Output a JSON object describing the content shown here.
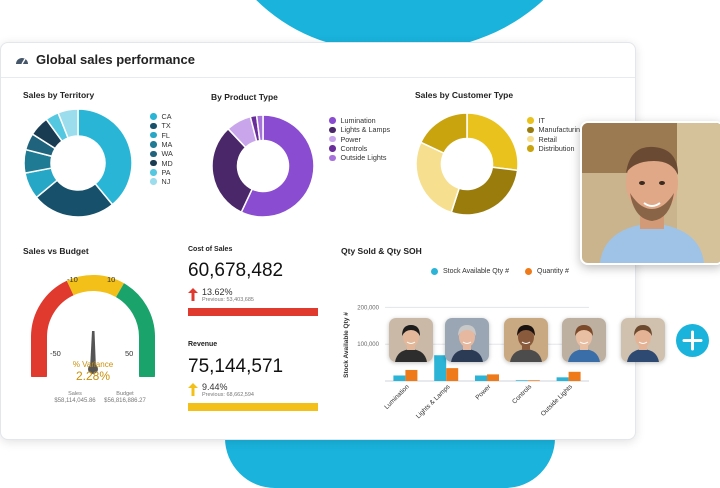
{
  "header": {
    "title": "Global sales performance",
    "icon": "gauge-icon"
  },
  "territory": {
    "title": "Sales by Territory",
    "legend": [
      "CA",
      "TX",
      "FL",
      "MA",
      "WA",
      "MD",
      "PA",
      "NJ"
    ],
    "colors": [
      "#29b6d6",
      "#16506a",
      "#27a7c6",
      "#1f7a93",
      "#20637c",
      "#1a3c52",
      "#54c8e0",
      "#9bdced"
    ],
    "values": [
      39,
      25,
      8,
      7,
      5,
      6,
      4,
      6
    ]
  },
  "product": {
    "title": "By Product Type",
    "legend": [
      "Lumination",
      "Lights & Lamps",
      "Power",
      "Controls",
      "Outside Lights"
    ],
    "colors": [
      "#8a4cd0",
      "#4a2768",
      "#c9a6ec",
      "#6a2e9a",
      "#a772dc"
    ],
    "values": [
      57,
      31,
      8,
      2,
      2
    ]
  },
  "customer": {
    "title": "Sales by Customer Type",
    "legend": [
      "IT",
      "Manufacturing",
      "Retail",
      "Distribution"
    ],
    "colors": [
      "#eac21e",
      "#9a7c0d",
      "#f6df8e",
      "#c9a40e"
    ],
    "values": [
      27,
      28,
      27,
      18
    ]
  },
  "budget": {
    "title": "Sales vs Budget",
    "ticks": [
      "-10",
      "10",
      "-50",
      "50"
    ],
    "variance_label": "% Variance",
    "variance_value": "2.28%",
    "sales_label": "Sales",
    "sales_value": "$58,114,045.86",
    "budget_label": "Budget",
    "budget_value": "$56,816,886.27",
    "zone_colors": [
      "#e0392e",
      "#f2c019",
      "#1aa36a"
    ]
  },
  "cost": {
    "title": "Cost of Sales",
    "value": "60,678,482",
    "change": "13.62%",
    "previous": "Previous: 53,403,685",
    "arrow_color": "#e0392e",
    "bar_color": "#e0392e",
    "bar_fill": 1.0
  },
  "revenue": {
    "title": "Revenue",
    "value": "75,144,571",
    "change": "9.44%",
    "previous": "Previous: 68,662,594",
    "arrow_color": "#f2c019",
    "bar_color": "#f2c019",
    "bar_fill": 1.0
  },
  "qty": {
    "title": "Qty Sold & Qty SOH",
    "legend_stock": "Stock Available Qty #",
    "legend_qty": "Quantity #",
    "ylabel": "Stock Available Qty #",
    "colors": {
      "stock": "#2cb4d6",
      "qty": "#ef7a1a"
    }
  },
  "chart_data": {
    "type": "bar",
    "title": "Qty Sold & Qty SOH",
    "ylabel": "Stock Available Qty #",
    "ylim": [
      0,
      250000
    ],
    "yticks": [
      "200,000",
      "100,000"
    ],
    "ytick_values": [
      200000,
      100000
    ],
    "categories": [
      "Lumination",
      "Lights & Lamps",
      "Power",
      "Controls",
      "Outside Lights"
    ],
    "series": [
      {
        "name": "Stock Available Qty #",
        "values": [
          15000,
          70000,
          15000,
          2000,
          10000
        ]
      },
      {
        "name": "Quantity #",
        "values": [
          30000,
          35000,
          18000,
          2000,
          25000
        ]
      }
    ],
    "legend_position": "top"
  }
}
